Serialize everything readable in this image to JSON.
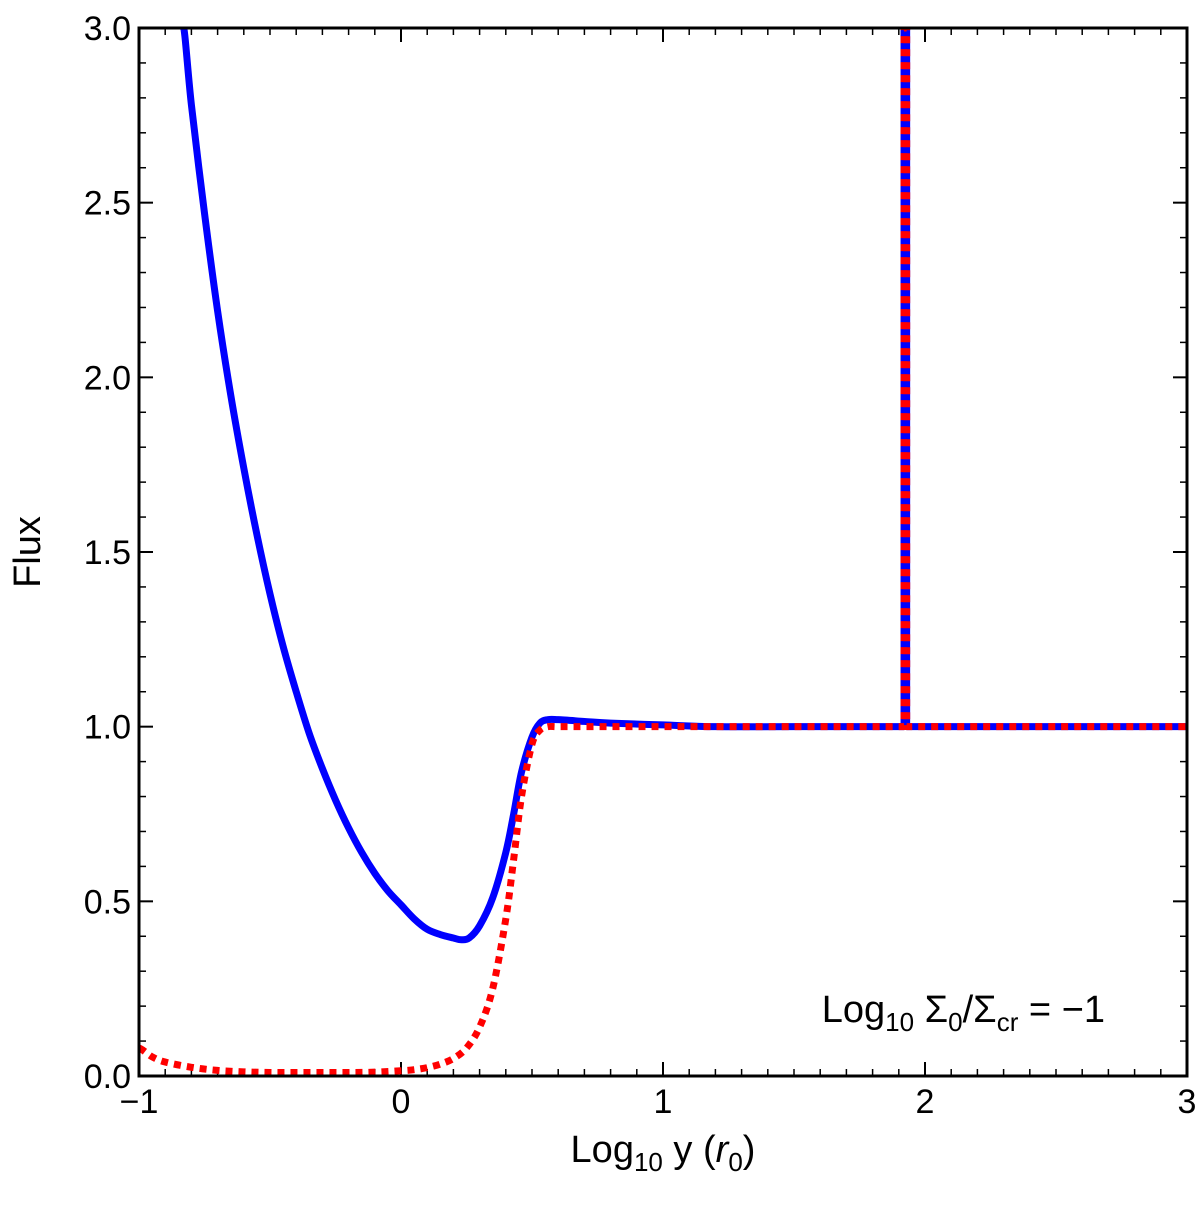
{
  "chart_data": {
    "type": "line",
    "xlabel": {
      "pre": "Log",
      "sub": "10",
      "post": " y (",
      "var": "r",
      "var_sub": "0",
      "close": ")"
    },
    "ylabel": "Flux",
    "xlim": [
      -1,
      3
    ],
    "ylim": [
      0,
      3
    ],
    "x_ticks": [
      -1,
      0,
      1,
      2,
      3
    ],
    "x_tick_labels": [
      "−1",
      "0",
      "1",
      "2",
      "3"
    ],
    "y_ticks": [
      0,
      0.5,
      1,
      1.5,
      2,
      2.5,
      3
    ],
    "y_tick_labels": [
      "0.0",
      "0.5",
      "1.0",
      "1.5",
      "2.0",
      "2.5",
      "3.0"
    ],
    "grid": false,
    "annotation": {
      "pre": "Log",
      "sub": "10",
      "mid": " Σ",
      "sub2": "0",
      "slash": "/Σ",
      "sub3": "cr",
      "post": " = −1"
    },
    "series": [
      {
        "color": "#0000ff",
        "style": "solid",
        "x": [
          -0.83,
          -0.8,
          -0.75,
          -0.7,
          -0.65,
          -0.6,
          -0.55,
          -0.5,
          -0.45,
          -0.4,
          -0.35,
          -0.3,
          -0.25,
          -0.2,
          -0.15,
          -0.1,
          -0.05,
          0.0,
          0.05,
          0.1,
          0.15,
          0.2,
          0.23,
          0.26,
          0.3,
          0.35,
          0.4,
          0.43,
          0.46,
          0.5,
          0.53,
          0.56,
          0.6,
          0.7,
          0.8,
          1.0,
          1.2,
          1.5,
          1.92,
          1.92,
          1.93,
          1.93,
          2.2,
          2.6,
          3.0
        ],
        "y": [
          3.0,
          2.78,
          2.47,
          2.19,
          1.95,
          1.74,
          1.55,
          1.38,
          1.23,
          1.1,
          0.98,
          0.88,
          0.79,
          0.71,
          0.64,
          0.58,
          0.53,
          0.49,
          0.45,
          0.42,
          0.405,
          0.395,
          0.39,
          0.395,
          0.43,
          0.51,
          0.64,
          0.75,
          0.87,
          0.97,
          1.01,
          1.02,
          1.02,
          1.015,
          1.01,
          1.005,
          1.0,
          1.0,
          1.0,
          3.0,
          3.0,
          1.0,
          1.0,
          1.0,
          1.0
        ]
      },
      {
        "color": "#ff0000",
        "style": "dotted",
        "x": [
          -1.0,
          -0.95,
          -0.9,
          -0.8,
          -0.7,
          -0.6,
          -0.5,
          -0.4,
          -0.3,
          -0.2,
          -0.1,
          0.0,
          0.05,
          0.1,
          0.15,
          0.2,
          0.25,
          0.3,
          0.35,
          0.4,
          0.43,
          0.46,
          0.5,
          0.53,
          0.56,
          0.6,
          0.7,
          1.0,
          1.5,
          1.92,
          1.92,
          1.93,
          1.93,
          2.5,
          3.0
        ],
        "y": [
          0.08,
          0.055,
          0.04,
          0.025,
          0.016,
          0.012,
          0.01,
          0.01,
          0.01,
          0.01,
          0.011,
          0.015,
          0.018,
          0.024,
          0.034,
          0.05,
          0.08,
          0.14,
          0.25,
          0.45,
          0.62,
          0.8,
          0.95,
          0.99,
          1.0,
          1.0,
          1.0,
          1.0,
          1.0,
          1.0,
          3.0,
          3.0,
          1.0,
          1.0,
          1.0
        ]
      }
    ]
  }
}
